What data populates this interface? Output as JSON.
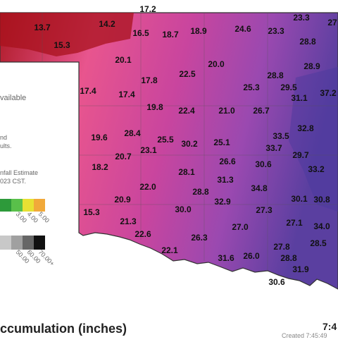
{
  "stations": [
    "17.2",
    "13.7",
    "14.2",
    "15.3",
    "16.5",
    "18.7",
    "18.9",
    "24.6",
    "23.3",
    "23.3",
    "27",
    "20.1",
    "17.8",
    "22.5",
    "20.0",
    "28.8",
    "28.8",
    "28.9",
    "25.3",
    "29.5",
    "31.1",
    "37.2",
    "17.4",
    "17.4",
    "19.8",
    "22.4",
    "21.0",
    "26.7",
    "32.8",
    "19.6",
    "28.4",
    "25.5",
    "30.2",
    "25.1",
    "33.5",
    "33.7",
    "20.7",
    "23.1",
    "29.7",
    "26.6",
    "30.6",
    "18.2",
    "28.1",
    "33.2",
    "31.3",
    "34.8",
    "22.0",
    "20.9",
    "28.8",
    "30.1",
    "30.8",
    "32.9",
    "30.0",
    "27.3",
    "15.3",
    "21.3",
    "27.0",
    "27.1",
    "34.0",
    "22.6",
    "26.3",
    "27.8",
    "28.5",
    "22.1",
    "31.6",
    "26.0",
    "28.8",
    "31.9",
    "30.6"
  ],
  "side_text": {
    "available": "vailable",
    "and": "nd",
    "results": "ults.",
    "estimate": "nfall Estimate",
    "time": "023 CST."
  },
  "legend": {
    "color_labels": [
      "3.00",
      "4.00",
      "5.00"
    ],
    "gray_labels": [
      "50.00",
      "60.00",
      "70.00+"
    ]
  },
  "footer": {
    "title": "ccumulation (inches)",
    "time": "7:4",
    "created": "Created 7:45:49"
  }
}
